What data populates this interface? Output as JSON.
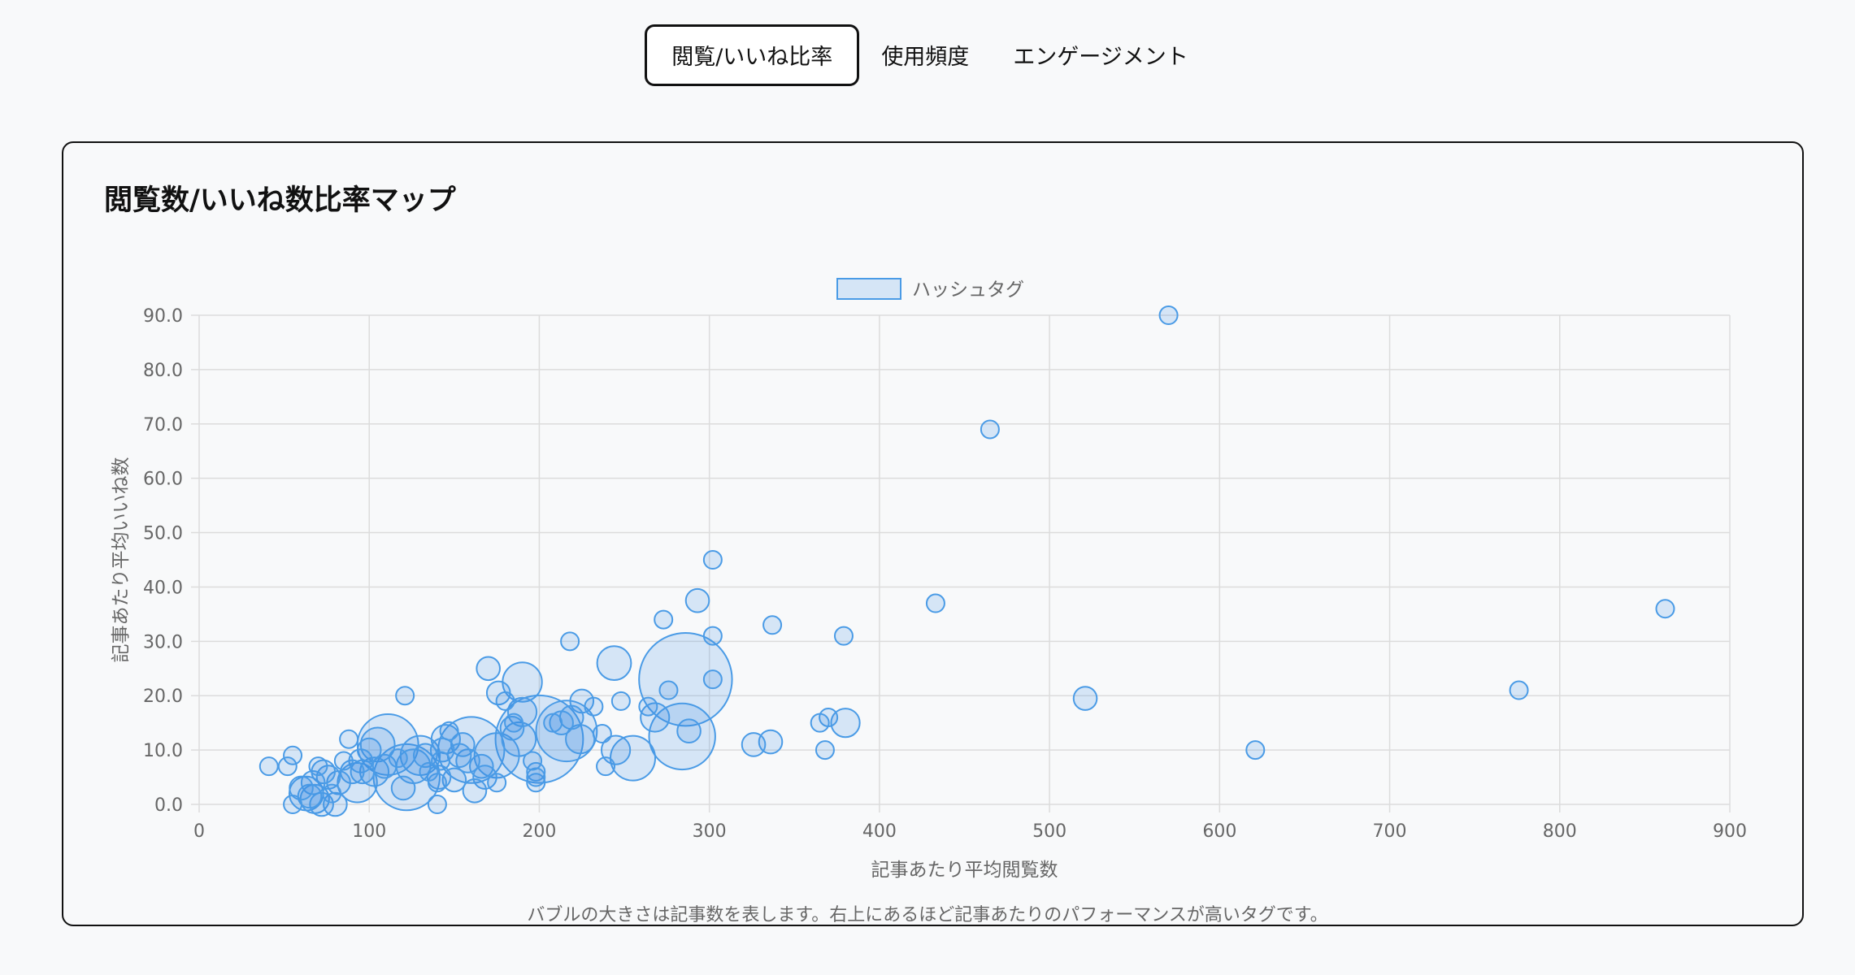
{
  "tabs": [
    {
      "label": "閲覧/いいね比率",
      "active": true
    },
    {
      "label": "使用頻度",
      "active": false
    },
    {
      "label": "エンゲージメント",
      "active": false
    }
  ],
  "card": {
    "title": "閲覧数/いいね数比率マップ",
    "caption": "バブルの大きさは記事数を表します。右上にあるほど記事あたりのパフォーマンスが高いタグです。"
  },
  "colors": {
    "bubble_fill": "rgba(54,140,230,0.18)",
    "bubble_stroke": "#4a9be6",
    "grid": "#dcdcdc",
    "axis_text": "#666666"
  },
  "chart_data": {
    "type": "scatter",
    "variant": "bubble",
    "legend": {
      "label": "ハッシュタグ",
      "position": "top"
    },
    "xlabel": "記事あたり平均閲覧数",
    "ylabel": "記事あたり平均いいね数",
    "xlim": [
      0,
      900
    ],
    "ylim": [
      0,
      90
    ],
    "xticks": [
      "0",
      "100",
      "200",
      "300",
      "400",
      "500",
      "600",
      "700",
      "800",
      "900"
    ],
    "yticks": [
      "0.0",
      "10.0",
      "20.0",
      "30.0",
      "40.0",
      "50.0",
      "60.0",
      "70.0",
      "80.0",
      "90.0"
    ],
    "grid": true,
    "series": [
      {
        "name": "ハッシュタグ",
        "points": [
          {
            "x": 570,
            "y": 90,
            "r": 1
          },
          {
            "x": 465,
            "y": 69,
            "r": 1
          },
          {
            "x": 862,
            "y": 36,
            "r": 1
          },
          {
            "x": 776,
            "y": 21,
            "r": 1
          },
          {
            "x": 621,
            "y": 10,
            "r": 1
          },
          {
            "x": 521,
            "y": 19.5,
            "r": 2
          },
          {
            "x": 433,
            "y": 37,
            "r": 1
          },
          {
            "x": 379,
            "y": 31,
            "r": 1
          },
          {
            "x": 380,
            "y": 15,
            "r": 3
          },
          {
            "x": 370,
            "y": 16,
            "r": 1
          },
          {
            "x": 365,
            "y": 15,
            "r": 1
          },
          {
            "x": 368,
            "y": 10,
            "r": 1
          },
          {
            "x": 337,
            "y": 33,
            "r": 1
          },
          {
            "x": 336,
            "y": 11.5,
            "r": 2
          },
          {
            "x": 326,
            "y": 11,
            "r": 2
          },
          {
            "x": 302,
            "y": 45,
            "r": 1
          },
          {
            "x": 302,
            "y": 31,
            "r": 1
          },
          {
            "x": 302,
            "y": 23,
            "r": 1
          },
          {
            "x": 293,
            "y": 37.5,
            "r": 2
          },
          {
            "x": 286,
            "y": 23,
            "r": 15
          },
          {
            "x": 284,
            "y": 12.5,
            "r": 10
          },
          {
            "x": 288,
            "y": 13.5,
            "r": 2
          },
          {
            "x": 276,
            "y": 21,
            "r": 1
          },
          {
            "x": 273,
            "y": 34,
            "r": 1
          },
          {
            "x": 268,
            "y": 16,
            "r": 3
          },
          {
            "x": 264,
            "y": 18,
            "r": 1
          },
          {
            "x": 255,
            "y": 8.5,
            "r": 6
          },
          {
            "x": 248,
            "y": 19,
            "r": 1
          },
          {
            "x": 244,
            "y": 26,
            "r": 4
          },
          {
            "x": 245,
            "y": 10,
            "r": 3
          },
          {
            "x": 239,
            "y": 7,
            "r": 1
          },
          {
            "x": 237,
            "y": 13,
            "r": 1
          },
          {
            "x": 232,
            "y": 18,
            "r": 1
          },
          {
            "x": 225,
            "y": 19,
            "r": 2
          },
          {
            "x": 224,
            "y": 12,
            "r": 3
          },
          {
            "x": 218,
            "y": 30,
            "r": 1
          },
          {
            "x": 219,
            "y": 16,
            "r": 2
          },
          {
            "x": 216,
            "y": 13.5,
            "r": 9
          },
          {
            "x": 213,
            "y": 15,
            "r": 2
          },
          {
            "x": 208,
            "y": 15,
            "r": 1
          },
          {
            "x": 200,
            "y": 12,
            "r": 14
          },
          {
            "x": 198,
            "y": 6,
            "r": 1
          },
          {
            "x": 198,
            "y": 4,
            "r": 1
          },
          {
            "x": 198,
            "y": 5,
            "r": 1
          },
          {
            "x": 196,
            "y": 8,
            "r": 1
          },
          {
            "x": 190,
            "y": 22.5,
            "r": 5
          },
          {
            "x": 190,
            "y": 17,
            "r": 3
          },
          {
            "x": 188,
            "y": 12,
            "r": 4
          },
          {
            "x": 184,
            "y": 14,
            "r": 2
          },
          {
            "x": 185,
            "y": 15,
            "r": 1
          },
          {
            "x": 180,
            "y": 19,
            "r": 1
          },
          {
            "x": 176,
            "y": 20.5,
            "r": 2
          },
          {
            "x": 175,
            "y": 9,
            "r": 6
          },
          {
            "x": 170,
            "y": 25,
            "r": 2
          },
          {
            "x": 175,
            "y": 4,
            "r": 1
          },
          {
            "x": 166,
            "y": 7,
            "r": 2
          },
          {
            "x": 168,
            "y": 5,
            "r": 2
          },
          {
            "x": 160,
            "y": 10,
            "r": 10
          },
          {
            "x": 162,
            "y": 2.5,
            "r": 2
          },
          {
            "x": 158,
            "y": 8,
            "r": 2
          },
          {
            "x": 155,
            "y": 11,
            "r": 2
          },
          {
            "x": 153,
            "y": 9,
            "r": 2
          },
          {
            "x": 150,
            "y": 4.5,
            "r": 2
          },
          {
            "x": 147,
            "y": 13.5,
            "r": 1
          },
          {
            "x": 145,
            "y": 12,
            "r": 3
          },
          {
            "x": 143,
            "y": 10,
            "r": 2
          },
          {
            "x": 142,
            "y": 8,
            "r": 1
          },
          {
            "x": 141,
            "y": 5,
            "r": 2
          },
          {
            "x": 140,
            "y": 0,
            "r": 1
          },
          {
            "x": 140,
            "y": 4,
            "r": 1
          },
          {
            "x": 135,
            "y": 6,
            "r": 1
          },
          {
            "x": 133,
            "y": 9,
            "r": 2
          },
          {
            "x": 130,
            "y": 9,
            "r": 5
          },
          {
            "x": 126,
            "y": 7,
            "r": 4
          },
          {
            "x": 122,
            "y": 5,
            "r": 10
          },
          {
            "x": 121,
            "y": 20,
            "r": 1
          },
          {
            "x": 120,
            "y": 3,
            "r": 2
          },
          {
            "x": 117,
            "y": 8.5,
            "r": 1
          },
          {
            "x": 111,
            "y": 11,
            "r": 9
          },
          {
            "x": 109,
            "y": 7,
            "r": 2
          },
          {
            "x": 105,
            "y": 11,
            "r": 4
          },
          {
            "x": 103,
            "y": 6,
            "r": 3
          },
          {
            "x": 100,
            "y": 10,
            "r": 2
          },
          {
            "x": 96,
            "y": 6,
            "r": 2
          },
          {
            "x": 95,
            "y": 8,
            "r": 2
          },
          {
            "x": 93,
            "y": 4,
            "r": 5
          },
          {
            "x": 90,
            "y": 6,
            "r": 2
          },
          {
            "x": 88,
            "y": 12,
            "r": 1
          },
          {
            "x": 85,
            "y": 8,
            "r": 1
          },
          {
            "x": 82,
            "y": 4,
            "r": 2
          },
          {
            "x": 80,
            "y": 0,
            "r": 2
          },
          {
            "x": 78,
            "y": 2,
            "r": 1
          },
          {
            "x": 76,
            "y": 5,
            "r": 2
          },
          {
            "x": 73,
            "y": 6,
            "r": 2
          },
          {
            "x": 72,
            "y": 0,
            "r": 2
          },
          {
            "x": 70,
            "y": 7,
            "r": 1
          },
          {
            "x": 68,
            "y": 1,
            "r": 3
          },
          {
            "x": 67,
            "y": 4,
            "r": 2
          },
          {
            "x": 65,
            "y": 1.5,
            "r": 2
          },
          {
            "x": 63,
            "y": 2,
            "r": 4
          },
          {
            "x": 60,
            "y": 3,
            "r": 2
          },
          {
            "x": 55,
            "y": 0,
            "r": 1
          },
          {
            "x": 55,
            "y": 9,
            "r": 1
          },
          {
            "x": 52,
            "y": 7,
            "r": 1
          },
          {
            "x": 41,
            "y": 7,
            "r": 1
          }
        ]
      }
    ]
  }
}
